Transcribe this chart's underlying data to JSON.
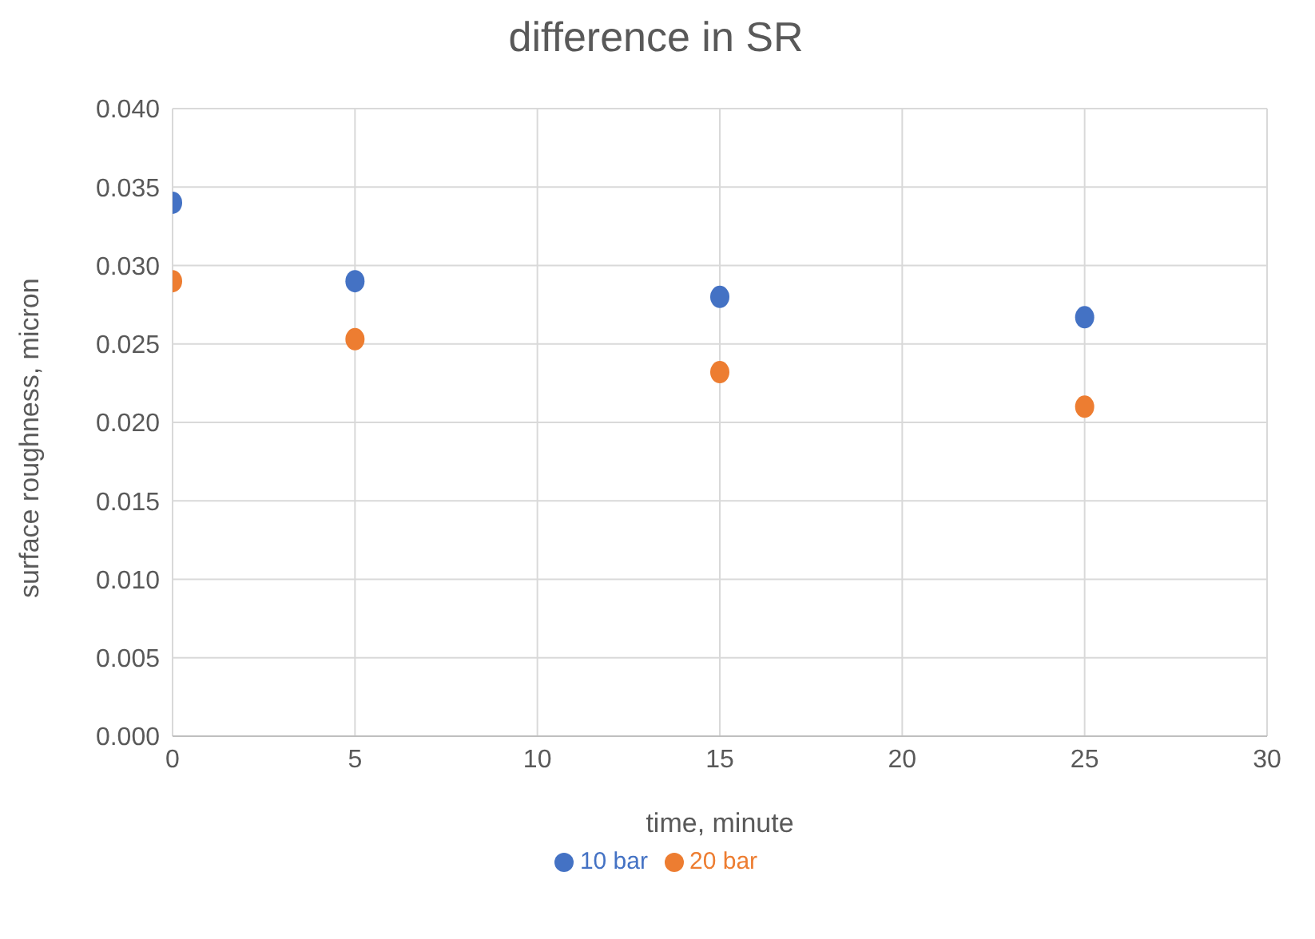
{
  "chart_data": {
    "type": "scatter",
    "title": "difference in SR",
    "xlabel": "time, minute",
    "ylabel": "surface roughness, micron",
    "x": [
      0,
      5,
      15,
      25
    ],
    "series": [
      {
        "name": "10 bar",
        "color": "#4472c4",
        "values": [
          0.034,
          0.029,
          0.028,
          0.0267
        ]
      },
      {
        "name": "20 bar",
        "color": "#ed7d31",
        "values": [
          0.029,
          0.0253,
          0.0232,
          0.021
        ]
      }
    ],
    "xlim": [
      0,
      30
    ],
    "xticks": [
      0,
      5,
      10,
      15,
      20,
      25,
      30
    ],
    "ylim": [
      0,
      0.04
    ],
    "yticks": [
      {
        "value": 0,
        "label": "0.000"
      },
      {
        "value": 0.005,
        "label": "0.005"
      },
      {
        "value": 0.01,
        "label": "0.010"
      },
      {
        "value": 0.015,
        "label": "0.015"
      },
      {
        "value": 0.02,
        "label": "0.020"
      },
      {
        "value": 0.025,
        "label": "0.025"
      },
      {
        "value": 0.03,
        "label": "0.030"
      },
      {
        "value": 0.035,
        "label": "0.035"
      },
      {
        "value": 0.04,
        "label": "0.040"
      }
    ],
    "grid": true,
    "legend": "bottom",
    "marker": "circle"
  }
}
